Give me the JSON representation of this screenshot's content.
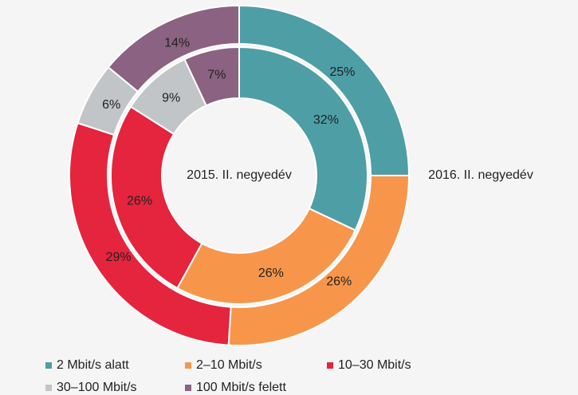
{
  "chart_data": {
    "type": "donut",
    "categories": [
      "2 Mbit/s alatt",
      "2–10 Mbit/s",
      "10–30 Mbit/s",
      "30–100 Mbit/s",
      "100 Mbit/s felett"
    ],
    "colors": [
      "#4e9ea6",
      "#f7964a",
      "#e5243d",
      "#c1c5c7",
      "#8b6282"
    ],
    "series": [
      {
        "name": "2016. II. negyedév",
        "values": [
          25,
          26,
          29,
          6,
          14
        ],
        "value_labels": [
          "25%",
          "26%",
          "29%",
          "6%",
          "14%"
        ]
      },
      {
        "name": "2015. II. negyedév",
        "values": [
          32,
          26,
          26,
          9,
          7
        ],
        "value_labels": [
          "32%",
          "26%",
          "26%",
          "9%",
          "7%"
        ]
      }
    ]
  }
}
